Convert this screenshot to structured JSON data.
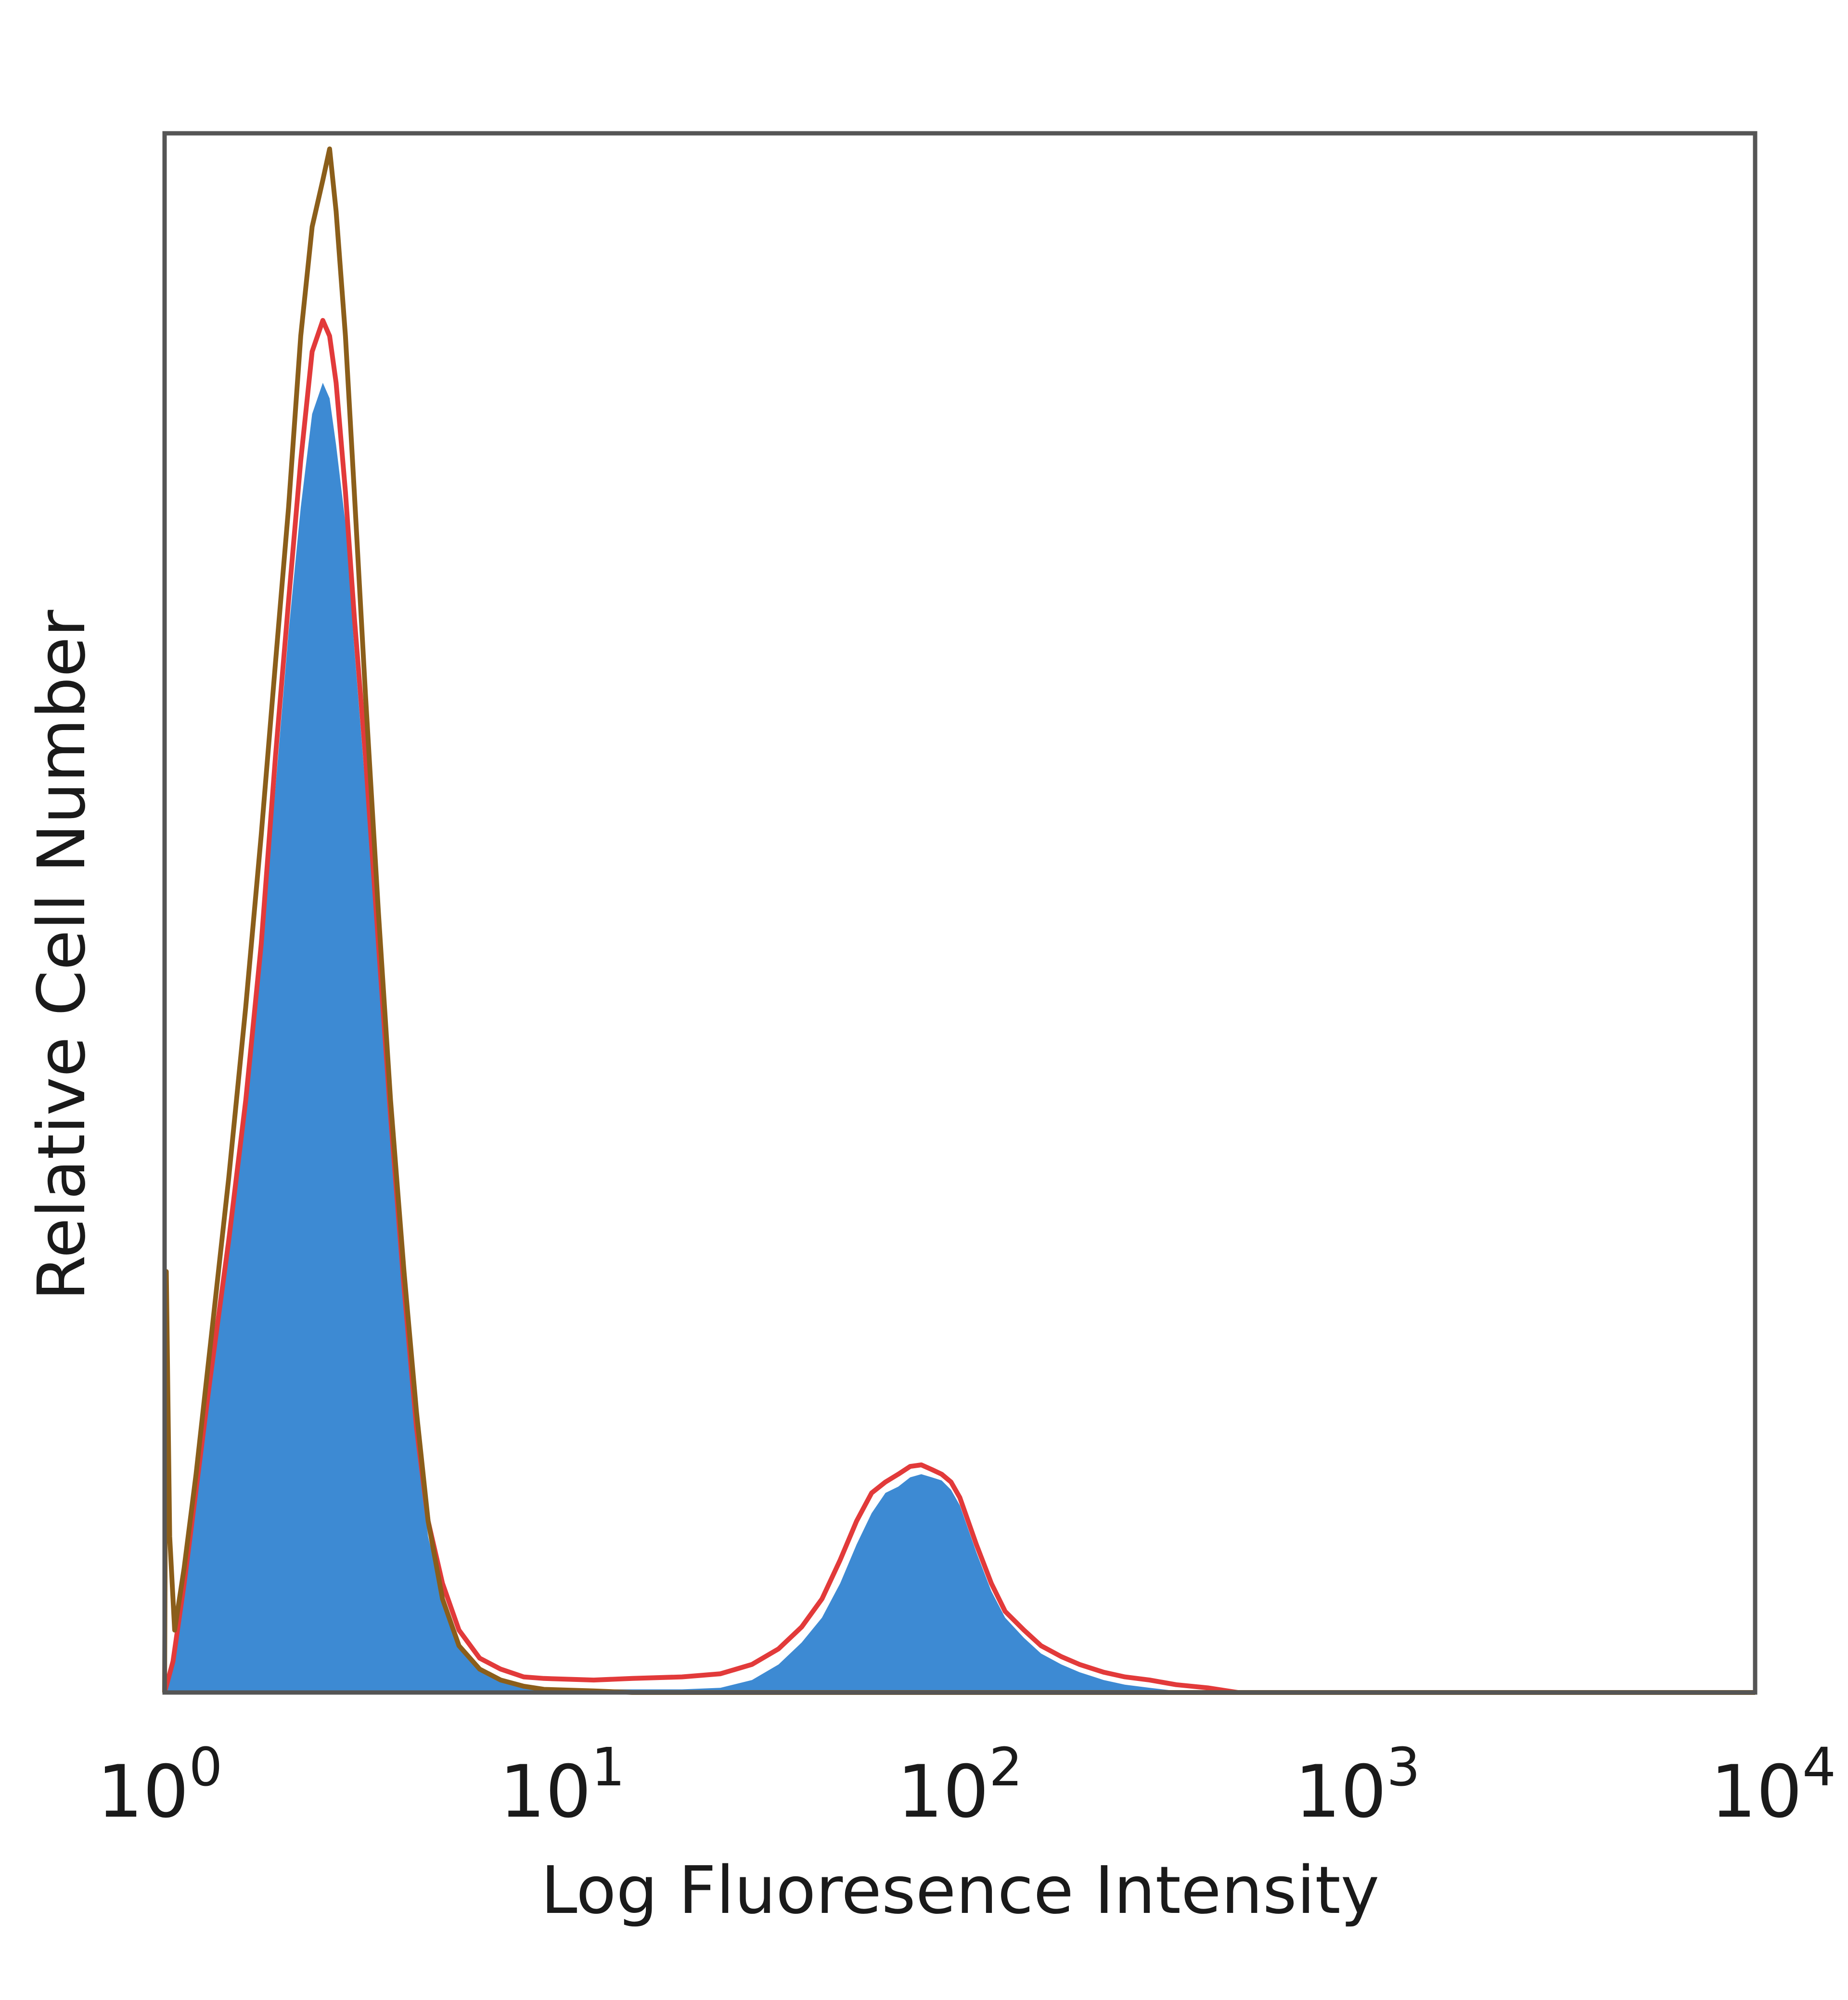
{
  "chart_data": {
    "type": "area",
    "xlabel": "Log Fluoresence Intensity",
    "ylabel": "Relative Cell Number",
    "x_scale": "log",
    "xlim": [
      1,
      10000
    ],
    "ylim": [
      0,
      100
    ],
    "grid": false,
    "legend": "none",
    "x_ticks": [
      {
        "value": 1,
        "base": "10",
        "exp": "0"
      },
      {
        "value": 10,
        "base": "10",
        "exp": "1"
      },
      {
        "value": 100,
        "base": "10",
        "exp": "2"
      },
      {
        "value": 1000,
        "base": "10",
        "exp": "3"
      },
      {
        "value": 10000,
        "base": "10",
        "exp": "4"
      }
    ],
    "series": [
      {
        "style": "filled",
        "color": "#3d8ad3",
        "points": [
          [
            1.0,
            0
          ],
          [
            1.05,
            2
          ],
          [
            1.12,
            6
          ],
          [
            1.2,
            12
          ],
          [
            1.3,
            19
          ],
          [
            1.45,
            28
          ],
          [
            1.6,
            37
          ],
          [
            1.75,
            47
          ],
          [
            1.9,
            58
          ],
          [
            2.05,
            68
          ],
          [
            2.2,
            76
          ],
          [
            2.35,
            82
          ],
          [
            2.5,
            84
          ],
          [
            2.6,
            83
          ],
          [
            2.7,
            80
          ],
          [
            2.85,
            75
          ],
          [
            3.0,
            67
          ],
          [
            3.2,
            58
          ],
          [
            3.45,
            47
          ],
          [
            3.7,
            36
          ],
          [
            4.0,
            25
          ],
          [
            4.3,
            16
          ],
          [
            4.6,
            10
          ],
          [
            5.0,
            6
          ],
          [
            5.5,
            3
          ],
          [
            6.2,
            1.5
          ],
          [
            7.0,
            0.8
          ],
          [
            8.0,
            0.4
          ],
          [
            9.0,
            0.3
          ],
          [
            12.0,
            0.2
          ],
          [
            15.0,
            0.2
          ],
          [
            20.0,
            0.2
          ],
          [
            25.0,
            0.3
          ],
          [
            30.0,
            0.8
          ],
          [
            35.0,
            1.8
          ],
          [
            40.0,
            3.2
          ],
          [
            45.0,
            4.8
          ],
          [
            50.0,
            7.0
          ],
          [
            55.0,
            9.5
          ],
          [
            60.0,
            11.5
          ],
          [
            65.0,
            12.8
          ],
          [
            70.0,
            13.2
          ],
          [
            75.0,
            13.8
          ],
          [
            80.0,
            14.0
          ],
          [
            85.0,
            13.8
          ],
          [
            90.0,
            13.6
          ],
          [
            95.0,
            13.0
          ],
          [
            100.0,
            12.0
          ],
          [
            110.0,
            9.0
          ],
          [
            120.0,
            6.5
          ],
          [
            130.0,
            4.8
          ],
          [
            145.0,
            3.5
          ],
          [
            160.0,
            2.5
          ],
          [
            180.0,
            1.8
          ],
          [
            200.0,
            1.3
          ],
          [
            230.0,
            0.8
          ],
          [
            260.0,
            0.5
          ],
          [
            300.0,
            0.3
          ],
          [
            350.0,
            0.1
          ],
          [
            420.0,
            0
          ],
          [
            10000.0,
            0
          ]
        ]
      },
      {
        "style": "line",
        "color": "#e23a3a",
        "points": [
          [
            1.0,
            0
          ],
          [
            1.05,
            2
          ],
          [
            1.12,
            7
          ],
          [
            1.2,
            13
          ],
          [
            1.3,
            20
          ],
          [
            1.45,
            29
          ],
          [
            1.6,
            38
          ],
          [
            1.75,
            48
          ],
          [
            1.9,
            60
          ],
          [
            2.05,
            70
          ],
          [
            2.2,
            79
          ],
          [
            2.35,
            86
          ],
          [
            2.5,
            88
          ],
          [
            2.6,
            87
          ],
          [
            2.7,
            84
          ],
          [
            2.85,
            77
          ],
          [
            3.0,
            69
          ],
          [
            3.2,
            60
          ],
          [
            3.45,
            48
          ],
          [
            3.7,
            37
          ],
          [
            4.0,
            26
          ],
          [
            4.3,
            17
          ],
          [
            4.6,
            11
          ],
          [
            5.0,
            7
          ],
          [
            5.5,
            4
          ],
          [
            6.2,
            2.2
          ],
          [
            7.0,
            1.5
          ],
          [
            8.0,
            1.0
          ],
          [
            9.0,
            0.9
          ],
          [
            12.0,
            0.8
          ],
          [
            15.0,
            0.9
          ],
          [
            20.0,
            1.0
          ],
          [
            25.0,
            1.2
          ],
          [
            30.0,
            1.8
          ],
          [
            35.0,
            2.8
          ],
          [
            40.0,
            4.2
          ],
          [
            45.0,
            6.0
          ],
          [
            50.0,
            8.5
          ],
          [
            55.0,
            11.0
          ],
          [
            60.0,
            12.8
          ],
          [
            65.0,
            13.5
          ],
          [
            70.0,
            14.0
          ],
          [
            75.0,
            14.5
          ],
          [
            80.0,
            14.6
          ],
          [
            85.0,
            14.3
          ],
          [
            90.0,
            14.0
          ],
          [
            95.0,
            13.5
          ],
          [
            100.0,
            12.5
          ],
          [
            110.0,
            9.5
          ],
          [
            120.0,
            7.0
          ],
          [
            130.0,
            5.2
          ],
          [
            145.0,
            4.0
          ],
          [
            160.0,
            3.0
          ],
          [
            180.0,
            2.3
          ],
          [
            200.0,
            1.8
          ],
          [
            230.0,
            1.3
          ],
          [
            260.0,
            1.0
          ],
          [
            300.0,
            0.8
          ],
          [
            350.0,
            0.5
          ],
          [
            420.0,
            0.3
          ],
          [
            500.0,
            0
          ],
          [
            10000.0,
            0
          ]
        ]
      },
      {
        "style": "line",
        "color": "#8b5e1a",
        "points": [
          [
            1.0,
            0
          ],
          [
            1.01,
            27
          ],
          [
            1.03,
            10
          ],
          [
            1.06,
            4
          ],
          [
            1.12,
            8
          ],
          [
            1.2,
            14
          ],
          [
            1.3,
            22
          ],
          [
            1.45,
            33
          ],
          [
            1.6,
            44
          ],
          [
            1.75,
            55
          ],
          [
            1.9,
            66
          ],
          [
            2.05,
            76
          ],
          [
            2.2,
            87
          ],
          [
            2.35,
            94
          ],
          [
            2.5,
            97
          ],
          [
            2.6,
            99
          ],
          [
            2.7,
            95
          ],
          [
            2.85,
            87
          ],
          [
            3.0,
            77
          ],
          [
            3.2,
            64
          ],
          [
            3.45,
            50
          ],
          [
            3.7,
            38
          ],
          [
            4.0,
            27
          ],
          [
            4.3,
            18
          ],
          [
            4.6,
            11
          ],
          [
            5.0,
            6
          ],
          [
            5.5,
            3
          ],
          [
            6.2,
            1.5
          ],
          [
            7.0,
            0.8
          ],
          [
            8.0,
            0.4
          ],
          [
            9.0,
            0.2
          ],
          [
            12.0,
            0.1
          ],
          [
            15.0,
            0
          ],
          [
            10000.0,
            0
          ]
        ]
      }
    ]
  }
}
